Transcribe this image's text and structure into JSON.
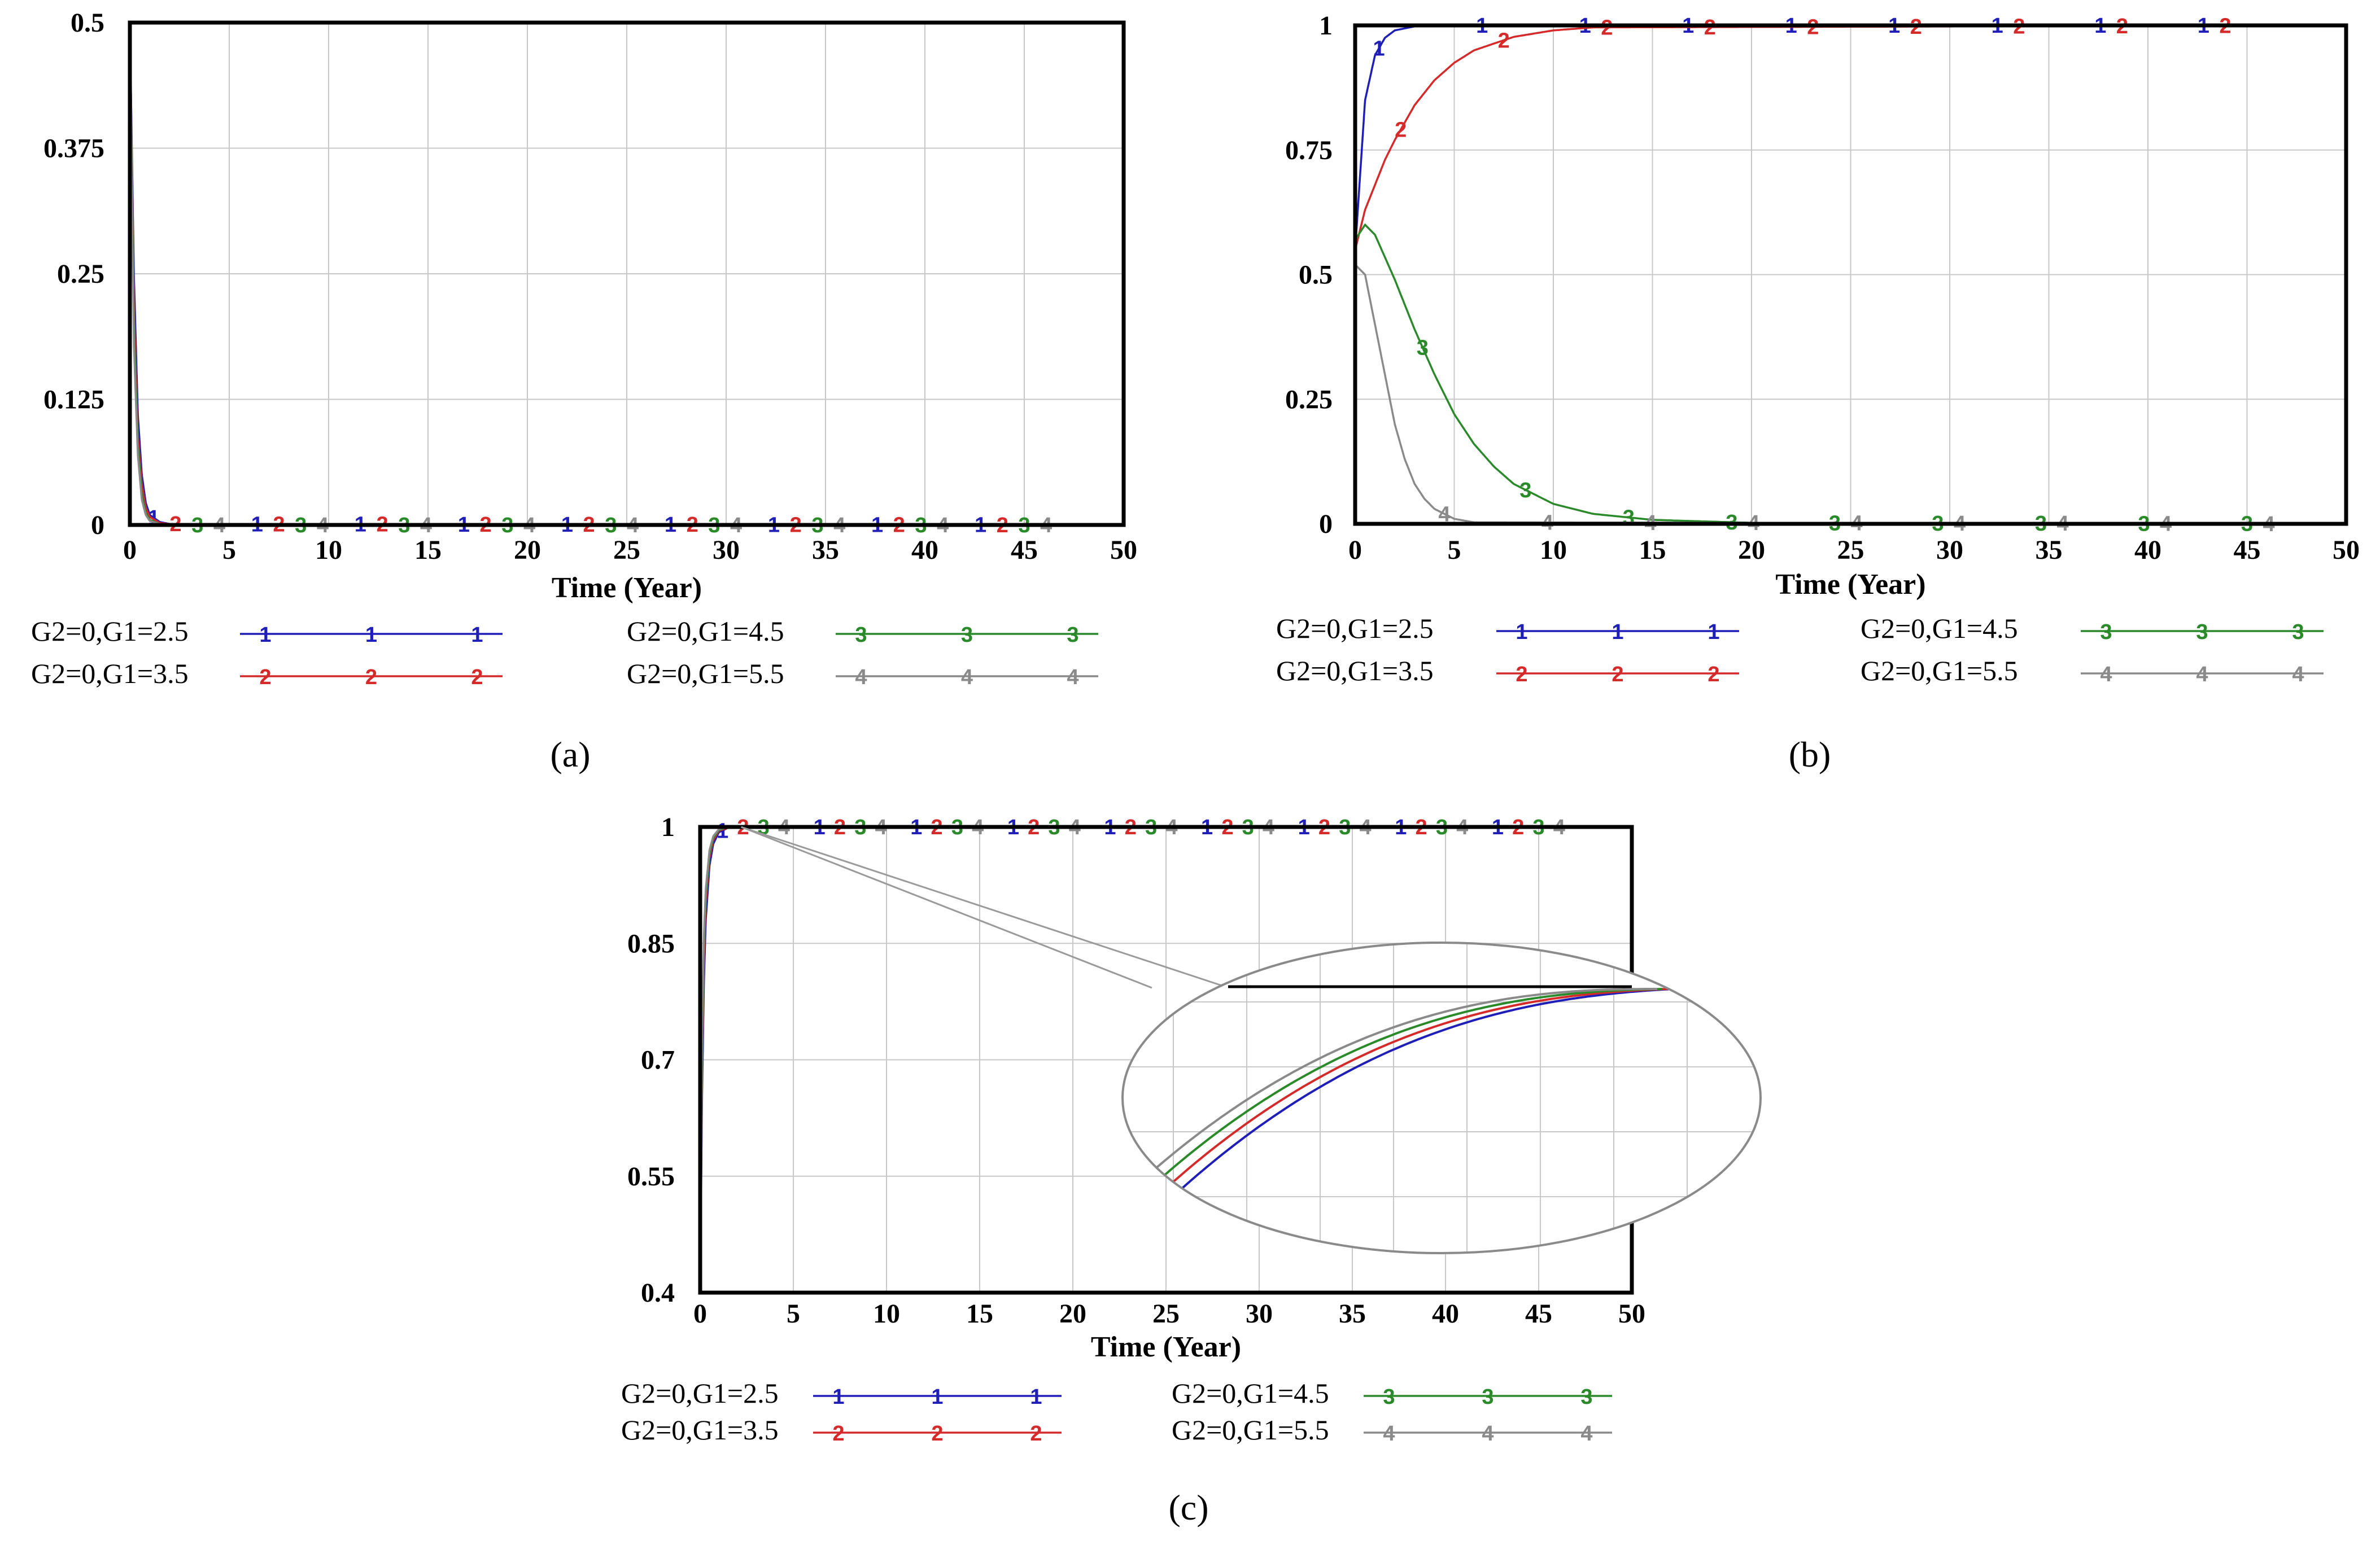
{
  "colors": {
    "series1": "#1f1fb8",
    "series2": "#d42a2a",
    "series3": "#2a8a2a",
    "series4": "#8a8a8a",
    "grid": "#c8c8c8",
    "frame": "#000000"
  },
  "chart_data": [
    {
      "id": "a",
      "type": "line",
      "panel_label": "(a)",
      "xlabel": "Time (Year)",
      "ylabel": "",
      "xlim": [
        0,
        50
      ],
      "ylim": [
        0,
        0.5
      ],
      "x_ticks": [
        "0",
        "5",
        "10",
        "15",
        "20",
        "25",
        "30",
        "35",
        "40",
        "45",
        "50"
      ],
      "y_ticks": [
        "0",
        "0.125",
        "0.25",
        "0.375",
        "0.5"
      ],
      "grid": true,
      "legend_position": "bottom",
      "series": [
        {
          "name": "G2=0,G1=2.5",
          "marker": "1",
          "x": [
            0,
            0.2,
            0.4,
            0.6,
            0.8,
            1,
            1.5,
            2,
            50
          ],
          "y": [
            0.5,
            0.25,
            0.11,
            0.05,
            0.022,
            0.01,
            0.003,
            0.001,
            0
          ]
        },
        {
          "name": "G2=0,G1=3.5",
          "marker": "2",
          "x": [
            0,
            0.2,
            0.4,
            0.6,
            0.8,
            1,
            1.5,
            2,
            50
          ],
          "y": [
            0.5,
            0.22,
            0.09,
            0.04,
            0.017,
            0.008,
            0.002,
            0.001,
            0
          ]
        },
        {
          "name": "G2=0,G1=4.5",
          "marker": "3",
          "x": [
            0,
            0.2,
            0.4,
            0.6,
            0.8,
            1,
            1.5,
            2,
            50
          ],
          "y": [
            0.5,
            0.2,
            0.08,
            0.03,
            0.012,
            0.005,
            0.001,
            0,
            0
          ]
        },
        {
          "name": "G2=0,G1=5.5",
          "marker": "4",
          "x": [
            0,
            0.2,
            0.4,
            0.6,
            0.8,
            1,
            1.5,
            2,
            50
          ],
          "y": [
            0.5,
            0.18,
            0.07,
            0.025,
            0.01,
            0.004,
            0.001,
            0,
            0
          ]
        }
      ]
    },
    {
      "id": "b",
      "type": "line",
      "panel_label": "(b)",
      "xlabel": "Time (Year)",
      "ylabel": "",
      "xlim": [
        0,
        50
      ],
      "ylim": [
        0,
        1
      ],
      "x_ticks": [
        "0",
        "5",
        "10",
        "15",
        "20",
        "25",
        "30",
        "35",
        "40",
        "45",
        "50"
      ],
      "y_ticks": [
        "0",
        "0.25",
        "0.5",
        "0.75",
        "1"
      ],
      "grid": true,
      "legend_position": "bottom",
      "series": [
        {
          "name": "G2=0,G1=2.5",
          "marker": "1",
          "x": [
            0,
            0.5,
            1,
            1.5,
            2,
            3,
            4,
            5,
            50
          ],
          "y": [
            0.55,
            0.85,
            0.94,
            0.975,
            0.99,
            0.998,
            1,
            1,
            1
          ]
        },
        {
          "name": "G2=0,G1=3.5",
          "marker": "2",
          "x": [
            0,
            0.5,
            1,
            1.5,
            2,
            3,
            4,
            5,
            6,
            8,
            10,
            12,
            50
          ],
          "y": [
            0.55,
            0.63,
            0.68,
            0.73,
            0.77,
            0.84,
            0.89,
            0.925,
            0.95,
            0.977,
            0.99,
            0.996,
            1
          ]
        },
        {
          "name": "G2=0,G1=4.5",
          "marker": "3",
          "x": [
            0,
            0.5,
            1,
            2,
            3,
            4,
            5,
            6,
            7,
            8,
            10,
            12,
            15,
            20,
            50
          ],
          "y": [
            0.57,
            0.6,
            0.58,
            0.49,
            0.39,
            0.3,
            0.22,
            0.16,
            0.115,
            0.08,
            0.04,
            0.02,
            0.008,
            0.002,
            0
          ]
        },
        {
          "name": "G2=0,G1=5.5",
          "marker": "4",
          "x": [
            0,
            0.5,
            1,
            1.5,
            2,
            2.5,
            3,
            3.5,
            4,
            5,
            6,
            50
          ],
          "y": [
            0.52,
            0.5,
            0.4,
            0.3,
            0.2,
            0.13,
            0.08,
            0.05,
            0.03,
            0.01,
            0.003,
            0
          ]
        }
      ]
    },
    {
      "id": "c",
      "type": "line",
      "panel_label": "(c)",
      "xlabel": "Time (Year)",
      "ylabel": "",
      "xlim": [
        0,
        50
      ],
      "ylim": [
        0.4,
        1
      ],
      "x_ticks": [
        "0",
        "5",
        "10",
        "15",
        "20",
        "25",
        "30",
        "35",
        "40",
        "45",
        "50"
      ],
      "y_ticks": [
        "0.4",
        "0.55",
        "0.7",
        "0.85",
        "1"
      ],
      "grid": true,
      "legend_position": "bottom",
      "inset": "magnified view of early convergence toward 1",
      "series": [
        {
          "name": "G2=0,G1=2.5",
          "marker": "1",
          "x": [
            0,
            0.1,
            0.2,
            0.3,
            0.5,
            0.7,
            1,
            1.5,
            2,
            50
          ],
          "y": [
            0.4,
            0.65,
            0.8,
            0.88,
            0.95,
            0.978,
            0.993,
            0.999,
            1,
            1
          ]
        },
        {
          "name": "G2=0,G1=3.5",
          "marker": "2",
          "x": [
            0,
            0.1,
            0.2,
            0.3,
            0.5,
            0.7,
            1,
            1.5,
            2,
            50
          ],
          "y": [
            0.4,
            0.68,
            0.83,
            0.9,
            0.96,
            0.983,
            0.995,
            0.999,
            1,
            1
          ]
        },
        {
          "name": "G2=0,G1=4.5",
          "marker": "3",
          "x": [
            0,
            0.1,
            0.2,
            0.3,
            0.5,
            0.7,
            1,
            1.5,
            2,
            50
          ],
          "y": [
            0.4,
            0.7,
            0.85,
            0.91,
            0.965,
            0.986,
            0.996,
            1,
            1,
            1
          ]
        },
        {
          "name": "G2=0,G1=5.5",
          "marker": "4",
          "x": [
            0,
            0.1,
            0.2,
            0.3,
            0.5,
            0.7,
            1,
            1.5,
            2,
            50
          ],
          "y": [
            0.4,
            0.72,
            0.86,
            0.92,
            0.97,
            0.988,
            0.997,
            1,
            1,
            1
          ]
        }
      ]
    }
  ]
}
